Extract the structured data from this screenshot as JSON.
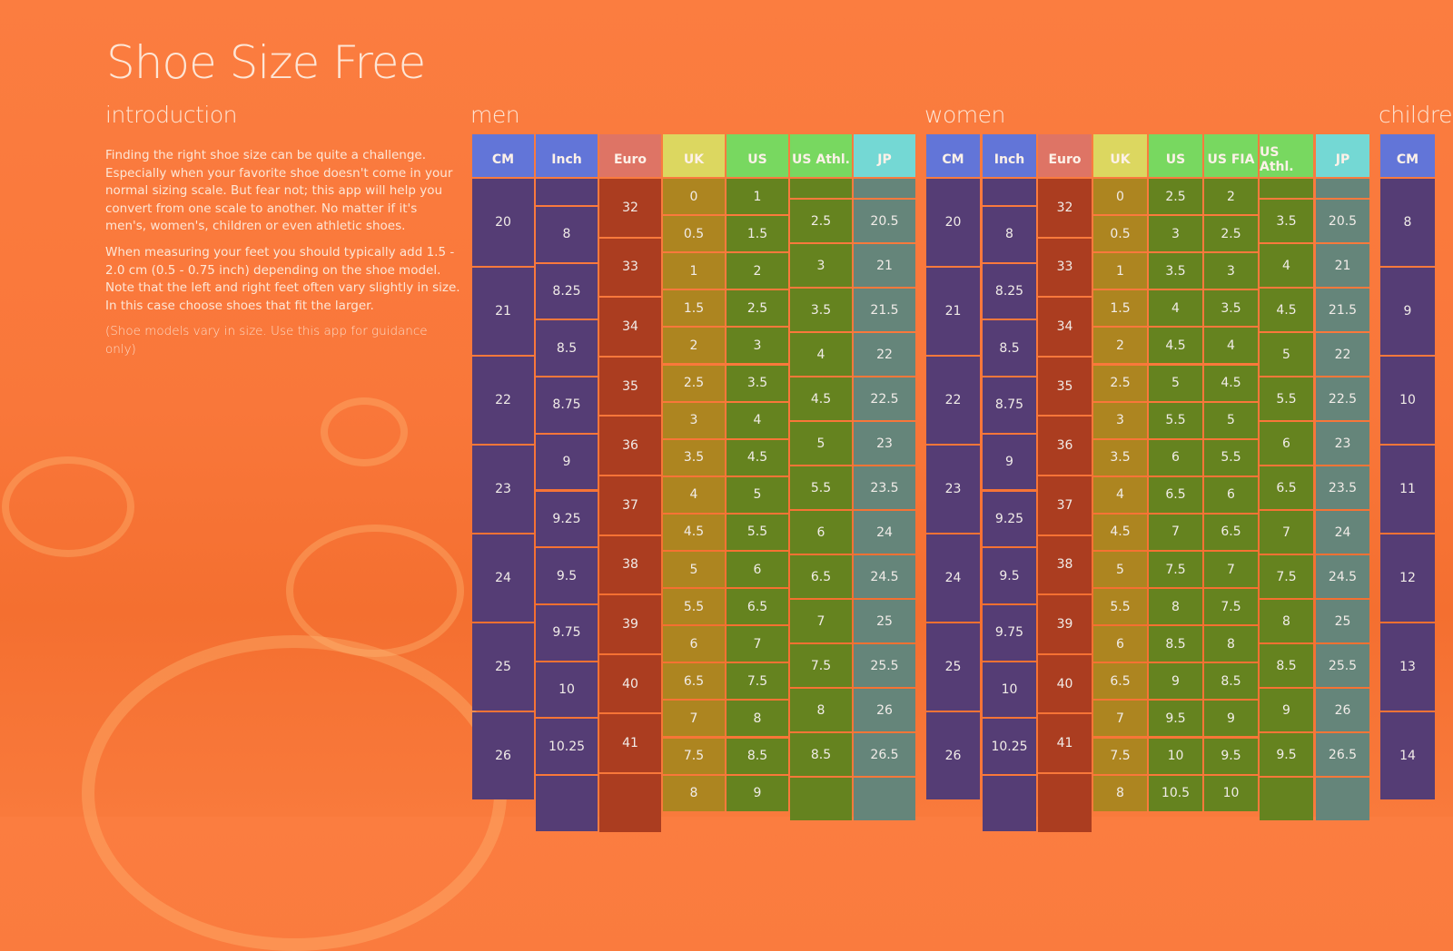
{
  "app_title": "Shoe Size Free",
  "introduction": {
    "heading": "introduction",
    "paragraphs": [
      "Finding the right shoe size can be quite a challenge. Especially when your favorite shoe doesn't come in your normal sizing scale. But fear not; this app will help you convert from one scale to another. No matter if it's men's, women's, children or even athletic shoes.",
      "When measuring your feet you should typically add 1.5 - 2.0 cm (0.5 - 0.75 inch) depending on the shoe model. Note that the left and right feet often vary slightly in size. In this case choose shoes that fit the larger."
    ],
    "note": "(Shoe models vary in size. Use this app for guidance only)"
  },
  "colors": {
    "cm_header": "#6275d8",
    "cm_cell": "#553d75",
    "euro_header": "#de7465",
    "euro_cell": "#ab3d20",
    "uk_header": "#dcd760",
    "uk_cell": "#ad8520",
    "us_header": "#78d860",
    "us_cell": "#65831f",
    "jp_header": "#74d8d4",
    "jp_cell": "#65857a"
  },
  "tables": [
    {
      "id": "men",
      "title": "men",
      "columns": [
        {
          "kind": "cm",
          "label": "CM",
          "values": [
            "20",
            "21",
            "22",
            "23",
            "24",
            "25",
            "26"
          ]
        },
        {
          "kind": "inch",
          "label": "Inch",
          "values": [
            "",
            "8",
            "8.25",
            "8.5",
            "8.75",
            "9",
            "9.25",
            "9.5",
            "9.75",
            "10",
            "10.25",
            ""
          ]
        },
        {
          "kind": "euro",
          "label": "Euro",
          "values": [
            "32",
            "33",
            "34",
            "35",
            "36",
            "37",
            "38",
            "39",
            "40",
            "41",
            ""
          ]
        },
        {
          "kind": "uk",
          "label": "UK",
          "values": [
            "0",
            "0.5",
            "1",
            "1.5",
            "2",
            "2.5",
            "3",
            "3.5",
            "4",
            "4.5",
            "5",
            "5.5",
            "6",
            "6.5",
            "7",
            "7.5",
            "8"
          ]
        },
        {
          "kind": "us",
          "label": "US",
          "values": [
            "1",
            "1.5",
            "2",
            "2.5",
            "3",
            "3.5",
            "4",
            "4.5",
            "5",
            "5.5",
            "6",
            "6.5",
            "7",
            "7.5",
            "8",
            "8.5",
            "9"
          ]
        },
        {
          "kind": "athl",
          "label": "US Athl.",
          "values": [
            "",
            "2.5",
            "3",
            "3.5",
            "4",
            "4.5",
            "5",
            "5.5",
            "6",
            "6.5",
            "7",
            "7.5",
            "8",
            "8.5",
            ""
          ]
        },
        {
          "kind": "jp",
          "label": "JP",
          "values": [
            "",
            "20.5",
            "21",
            "21.5",
            "22",
            "22.5",
            "23",
            "23.5",
            "24",
            "24.5",
            "25",
            "25.5",
            "26",
            "26.5",
            ""
          ]
        }
      ]
    },
    {
      "id": "women",
      "title": "women",
      "columns": [
        {
          "kind": "cm",
          "label": "CM",
          "values": [
            "20",
            "21",
            "22",
            "23",
            "24",
            "25",
            "26"
          ]
        },
        {
          "kind": "inch",
          "label": "Inch",
          "values": [
            "",
            "8",
            "8.25",
            "8.5",
            "8.75",
            "9",
            "9.25",
            "9.5",
            "9.75",
            "10",
            "10.25",
            ""
          ]
        },
        {
          "kind": "euro",
          "label": "Euro",
          "values": [
            "32",
            "33",
            "34",
            "35",
            "36",
            "37",
            "38",
            "39",
            "40",
            "41",
            ""
          ]
        },
        {
          "kind": "uk",
          "label": "UK",
          "values": [
            "0",
            "0.5",
            "1",
            "1.5",
            "2",
            "2.5",
            "3",
            "3.5",
            "4",
            "4.5",
            "5",
            "5.5",
            "6",
            "6.5",
            "7",
            "7.5",
            "8"
          ]
        },
        {
          "kind": "us",
          "label": "US",
          "values": [
            "2.5",
            "3",
            "3.5",
            "4",
            "4.5",
            "5",
            "5.5",
            "6",
            "6.5",
            "7",
            "7.5",
            "8",
            "8.5",
            "9",
            "9.5",
            "10",
            "10.5"
          ]
        },
        {
          "kind": "us",
          "label": "US FIA",
          "values": [
            "2",
            "2.5",
            "3",
            "3.5",
            "4",
            "4.5",
            "5",
            "5.5",
            "6",
            "6.5",
            "7",
            "7.5",
            "8",
            "8.5",
            "9",
            "9.5",
            "10"
          ]
        },
        {
          "kind": "athl",
          "label": "US Athl.",
          "values": [
            "",
            "3.5",
            "4",
            "4.5",
            "5",
            "5.5",
            "6",
            "6.5",
            "7",
            "7.5",
            "8",
            "8.5",
            "9",
            "9.5",
            ""
          ]
        },
        {
          "kind": "jp",
          "label": "JP",
          "values": [
            "",
            "20.5",
            "21",
            "21.5",
            "22",
            "22.5",
            "23",
            "23.5",
            "24",
            "24.5",
            "25",
            "25.5",
            "26",
            "26.5",
            ""
          ]
        }
      ]
    },
    {
      "id": "children",
      "title": "children",
      "columns": [
        {
          "kind": "cm",
          "label": "CM",
          "values": [
            "8",
            "9",
            "10",
            "11",
            "12",
            "13",
            "14"
          ]
        }
      ]
    }
  ]
}
